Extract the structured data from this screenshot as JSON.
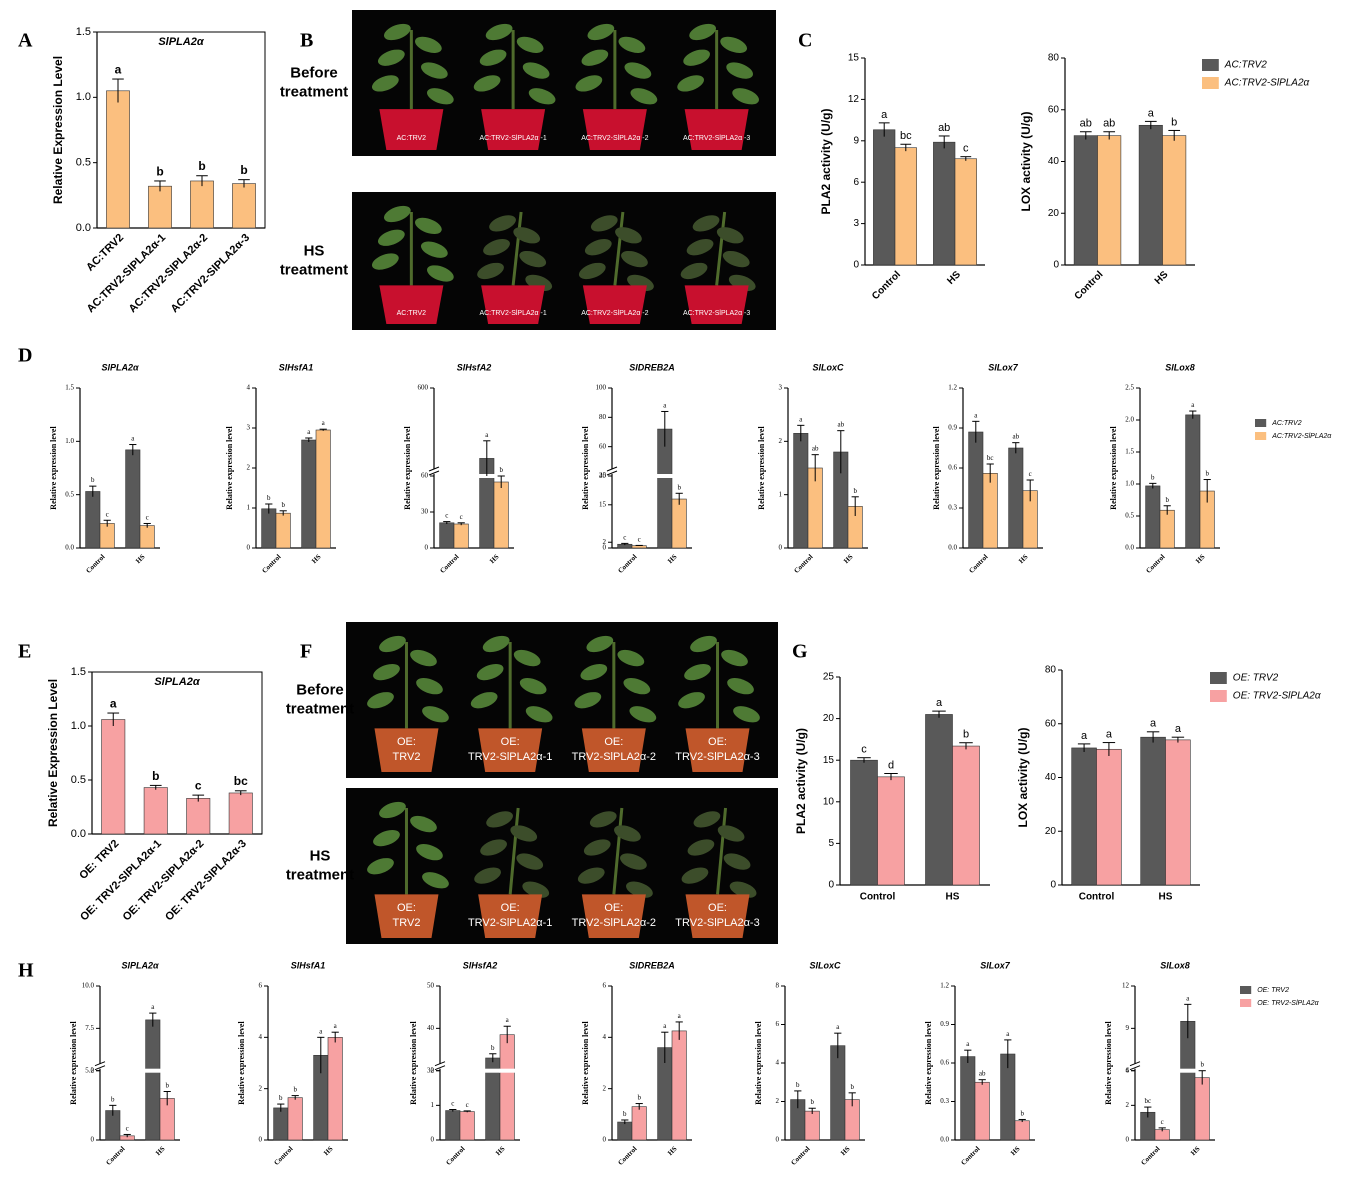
{
  "photos": [
    {
      "panel": "B",
      "images": [
        {
          "label": [
            "Before",
            "treatment"
          ],
          "pots": [
            [
              "AC:TRV2"
            ],
            [
              "AC:TRV2-SlPLA2α -1"
            ],
            [
              "AC:TRV2-SlPLA2α -2"
            ],
            [
              "AC:TRV2-SlPLA2α -3"
            ]
          ]
        },
        {
          "label": [
            "HS",
            "treatment"
          ],
          "pots": [
            [
              "AC:TRV2"
            ],
            [
              "AC:TRV2-SlPLA2α -1"
            ],
            [
              "AC:TRV2-SlPLA2α -2"
            ],
            [
              "AC:TRV2-SlPLA2α -3"
            ]
          ]
        }
      ]
    },
    {
      "panel": "F",
      "images": [
        {
          "label": [
            "Before",
            "treatment"
          ],
          "pots": [
            [
              "OE:",
              "TRV2"
            ],
            [
              "OE:",
              "TRV2-SlPLA2α-1"
            ],
            [
              "OE:",
              "TRV2-SlPLA2α-2"
            ],
            [
              "OE:",
              "TRV2-SlPLA2α-3"
            ]
          ]
        },
        {
          "label": [
            "HS",
            "treatment"
          ],
          "pots": [
            [
              "OE:",
              "TRV2"
            ],
            [
              "OE:",
              "TRV2-SlPLA2α-1"
            ],
            [
              "OE:",
              "TRV2-SlPLA2α-2"
            ],
            [
              "OE:",
              "TRV2-SlPLA2α-3"
            ]
          ]
        }
      ]
    }
  ],
  "chart_data": [
    {
      "type": "bar",
      "panel": "A",
      "title": "SlPLA2α",
      "y_label": "Relative Expression Level",
      "categories": [
        "AC:TRV2",
        "AC:TRV2-SlPLA2α-1",
        "AC:TRV2-SlPLA2α-2",
        "AC:TRV2-SlPLA2α-3"
      ],
      "values": [
        1.05,
        0.32,
        0.36,
        0.34
      ],
      "errors": [
        0.09,
        0.04,
        0.04,
        0.03
      ],
      "letters": [
        "a",
        "b",
        "b",
        "b"
      ],
      "color": "#fbbf7f",
      "ylim": [
        0,
        1.5
      ],
      "yticks": [
        {
          "value": 0,
          "label": "0.0"
        },
        0.5,
        {
          "value": 1,
          "label": "1.0"
        },
        1.5
      ]
    },
    {
      "type": "bar",
      "panel": "C",
      "y_label": "PLA2 activity (U/g)",
      "categories": [
        "Control",
        "HS"
      ],
      "series": [
        {
          "color": "#595959",
          "values": [
            9.8,
            8.9
          ],
          "errors": [
            0.5,
            0.45
          ],
          "letters": [
            "a",
            "ab"
          ]
        },
        {
          "color": "#fbbf7f",
          "values": [
            8.5,
            7.7
          ],
          "errors": [
            0.25,
            0.15
          ],
          "letters": [
            "bc",
            "c"
          ]
        }
      ],
      "ylim": [
        0,
        15
      ],
      "yticks": [
        0,
        3,
        6,
        9,
        12,
        15
      ]
    },
    {
      "type": "bar",
      "y_label": "LOX activity (U/g)",
      "categories": [
        "Control",
        "HS"
      ],
      "series": [
        {
          "name": "AC:TRV2",
          "color": "#595959",
          "values": [
            50,
            54
          ],
          "errors": [
            1.5,
            1.5
          ],
          "letters": [
            "ab",
            "a"
          ]
        },
        {
          "name": "AC:TRV2-SlPLA2α",
          "color": "#fbbf7f",
          "values": [
            50,
            50
          ],
          "errors": [
            1.5,
            2
          ],
          "letters": [
            "ab",
            "b"
          ]
        }
      ],
      "ylim": [
        0,
        80
      ],
      "yticks": [
        0,
        20,
        40,
        60,
        80
      ]
    },
    {
      "type": "bar",
      "panel": "D",
      "title": "SlPLA2α",
      "y_label": "Relative expression level",
      "categories": [
        "Control",
        "HS"
      ],
      "series": [
        {
          "color": "#595959",
          "values": [
            0.53,
            0.92
          ],
          "errors": [
            0.05,
            0.05
          ],
          "letters": [
            "b",
            "a"
          ]
        },
        {
          "color": "#fbbf7f",
          "values": [
            0.23,
            0.21
          ],
          "errors": [
            0.03,
            0.02
          ],
          "letters": [
            "c",
            "c"
          ]
        }
      ],
      "ylim": [
        0,
        1.5
      ],
      "yticks": [
        {
          "value": 0,
          "label": "0.0"
        },
        0.5,
        {
          "value": 1,
          "label": "1.0"
        },
        1.5
      ]
    },
    {
      "type": "bar",
      "title": "SlHsfA1",
      "y_label": "Relative expression level",
      "categories": [
        "Control",
        "HS"
      ],
      "series": [
        {
          "color": "#595959",
          "values": [
            0.98,
            2.7
          ],
          "errors": [
            0.12,
            0.05
          ],
          "letters": [
            "b",
            "a"
          ]
        },
        {
          "color": "#fbbf7f",
          "values": [
            0.87,
            2.95
          ],
          "errors": [
            0.06,
            0.02
          ],
          "letters": [
            "b",
            "a"
          ]
        }
      ],
      "ylim": [
        0,
        4
      ],
      "yticks": [
        0,
        1,
        2,
        3,
        4
      ]
    },
    {
      "type": "bar",
      "title": "SlHsfA2",
      "y_label": "Relative expression level",
      "categories": [
        "Control",
        "HS"
      ],
      "series": [
        {
          "color": "#595959",
          "values": [
            21,
            360
          ],
          "errors": [
            1,
            60
          ],
          "letters": [
            "c",
            "a"
          ]
        },
        {
          "color": "#fbbf7f",
          "values": [
            20,
            55
          ],
          "errors": [
            1,
            5
          ],
          "letters": [
            "c",
            "b"
          ]
        }
      ],
      "ylim": [
        0,
        600
      ],
      "ybreak": [
        60,
        300
      ],
      "yticks": [
        0,
        30,
        60,
        600
      ]
    },
    {
      "type": "bar",
      "title": "SlDREB2A",
      "y_label": "Relative expression level",
      "categories": [
        "Control",
        "HS"
      ],
      "series": [
        {
          "color": "#595959",
          "values": [
            1.3,
            72
          ],
          "errors": [
            0.3,
            12
          ],
          "letters": [
            "c",
            "a"
          ]
        },
        {
          "color": "#fbbf7f",
          "values": [
            0.8,
            17
          ],
          "errors": [
            0.1,
            2
          ],
          "letters": [
            "c",
            "b"
          ]
        }
      ],
      "ylim": [
        0,
        100
      ],
      "ybreak": [
        25,
        40
      ],
      "yticks": [
        0,
        2,
        15,
        25,
        40,
        60,
        80,
        100
      ]
    },
    {
      "type": "bar",
      "title": "SlLoxC",
      "y_label": "Relative expression level",
      "categories": [
        "Control",
        "HS"
      ],
      "series": [
        {
          "color": "#595959",
          "values": [
            2.15,
            1.8
          ],
          "errors": [
            0.15,
            0.4
          ],
          "letters": [
            "a",
            "ab"
          ]
        },
        {
          "color": "#fbbf7f",
          "values": [
            1.5,
            0.78
          ],
          "errors": [
            0.25,
            0.18
          ],
          "letters": [
            "ab",
            "b"
          ]
        }
      ],
      "ylim": [
        0,
        3
      ],
      "yticks": [
        0,
        1,
        2,
        3
      ]
    },
    {
      "type": "bar",
      "title": "SlLox7",
      "y_label": "Relative expression level",
      "categories": [
        "Control",
        "HS"
      ],
      "series": [
        {
          "color": "#595959",
          "values": [
            0.87,
            0.75
          ],
          "errors": [
            0.08,
            0.04
          ],
          "letters": [
            "a",
            "ab"
          ]
        },
        {
          "color": "#fbbf7f",
          "values": [
            0.56,
            0.43
          ],
          "errors": [
            0.07,
            0.08
          ],
          "letters": [
            "bc",
            "c"
          ]
        }
      ],
      "ylim": [
        0,
        1.2
      ],
      "yticks": [
        {
          "value": 0,
          "label": "0.0"
        },
        0.3,
        0.6,
        0.9,
        1.2
      ]
    },
    {
      "type": "bar",
      "title": "SlLox8",
      "y_label": "Relative expression level",
      "categories": [
        "Control",
        "HS"
      ],
      "series": [
        {
          "name": "AC:TRV2",
          "color": "#595959",
          "values": [
            0.97,
            2.08
          ],
          "errors": [
            0.04,
            0.06
          ],
          "letters": [
            "b",
            "a"
          ]
        },
        {
          "name": "AC:TRV2-SlPLA2α",
          "color": "#fbbf7f",
          "values": [
            0.59,
            0.89
          ],
          "errors": [
            0.07,
            0.18
          ],
          "letters": [
            "b",
            "b"
          ]
        }
      ],
      "ylim": [
        0,
        2.5
      ],
      "yticks": [
        {
          "value": 0,
          "label": "0.0"
        },
        0.5,
        {
          "value": 1,
          "label": "1.0"
        },
        1.5,
        {
          "value": 2,
          "label": "2.0"
        },
        2.5
      ]
    },
    {
      "type": "bar",
      "panel": "E",
      "title": "SlPLA2α",
      "y_label": "Relative Expression Level",
      "categories": [
        "OE: TRV2",
        "OE: TRV2-SlPLA2α-1",
        "OE: TRV2-SlPLA2α-2",
        "OE: TRV2-SlPLA2α-3"
      ],
      "values": [
        1.06,
        0.43,
        0.33,
        0.38
      ],
      "errors": [
        0.06,
        0.02,
        0.03,
        0.02
      ],
      "letters": [
        "a",
        "b",
        "c",
        "bc"
      ],
      "color": "#f7a1a2",
      "ylim": [
        0,
        1.5
      ],
      "yticks": [
        {
          "value": 0,
          "label": "0.0"
        },
        0.5,
        {
          "value": 1,
          "label": "1.0"
        },
        1.5
      ]
    },
    {
      "type": "bar",
      "panel": "G",
      "y_label": "PLA2 activity (U/g)",
      "categories": [
        "Control",
        "HS"
      ],
      "series": [
        {
          "color": "#595959",
          "values": [
            15,
            20.5
          ],
          "errors": [
            0.3,
            0.4
          ],
          "letters": [
            "c",
            "a"
          ]
        },
        {
          "color": "#f7a1a2",
          "values": [
            13,
            16.7
          ],
          "errors": [
            0.4,
            0.4
          ],
          "letters": [
            "d",
            "b"
          ]
        }
      ],
      "ylim": [
        0,
        25
      ],
      "yticks": [
        0,
        5,
        10,
        15,
        20,
        25
      ]
    },
    {
      "type": "bar",
      "y_label": "LOX activity (U/g)",
      "categories": [
        "Control",
        "HS"
      ],
      "series": [
        {
          "name": "OE: TRV2",
          "color": "#595959",
          "values": [
            51,
            55
          ],
          "errors": [
            1.5,
            2
          ],
          "letters": [
            "a",
            "a"
          ]
        },
        {
          "name": "OE: TRV2-SlPLA2α",
          "color": "#f7a1a2",
          "values": [
            50.5,
            54
          ],
          "errors": [
            2.5,
            1
          ],
          "letters": [
            "a",
            "a"
          ]
        }
      ],
      "ylim": [
        0,
        80
      ],
      "yticks": [
        0,
        20,
        40,
        60,
        80
      ]
    },
    {
      "type": "bar",
      "panel": "H",
      "title": "SlPLA2α",
      "y_label": "Relative expression level",
      "categories": [
        "Control",
        "HS"
      ],
      "series": [
        {
          "color": "#595959",
          "values": [
            0.85,
            8.0
          ],
          "errors": [
            0.15,
            0.4
          ],
          "letters": [
            "b",
            "a"
          ]
        },
        {
          "color": "#f7a1a2",
          "values": [
            0.12,
            1.2
          ],
          "errors": [
            0.04,
            0.2
          ],
          "letters": [
            "c",
            "b"
          ]
        }
      ],
      "ylim": [
        0,
        10
      ],
      "ybreak": [
        2,
        5
      ],
      "yticks": [
        0,
        2,
        {
          "value": 5,
          "label": "5.0"
        },
        7.5,
        {
          "value": 10,
          "label": "10.0"
        }
      ]
    },
    {
      "type": "bar",
      "title": "SlHsfA1",
      "y_label": "Relative expression level",
      "categories": [
        "Control",
        "HS"
      ],
      "series": [
        {
          "color": "#595959",
          "values": [
            1.25,
            3.3
          ],
          "errors": [
            0.15,
            0.7
          ],
          "letters": [
            "b",
            "a"
          ]
        },
        {
          "color": "#f7a1a2",
          "values": [
            1.65,
            4.0
          ],
          "errors": [
            0.08,
            0.2
          ],
          "letters": [
            "b",
            "a"
          ]
        }
      ],
      "ylim": [
        0,
        6
      ],
      "yticks": [
        0,
        2,
        4,
        6
      ]
    },
    {
      "type": "bar",
      "title": "SlHsfA2",
      "y_label": "Relative expression level",
      "categories": [
        "Control",
        "HS"
      ],
      "series": [
        {
          "color": "#595959",
          "values": [
            0.85,
            33
          ],
          "errors": [
            0.03,
            1
          ],
          "letters": [
            "c",
            "b"
          ]
        },
        {
          "color": "#f7a1a2",
          "values": [
            0.82,
            38.5
          ],
          "errors": [
            0.02,
            2
          ],
          "letters": [
            "c",
            "a"
          ]
        }
      ],
      "ylim": [
        0,
        50
      ],
      "ybreak": [
        2,
        30
      ],
      "yticks": [
        0,
        1,
        2,
        30,
        40,
        50
      ]
    },
    {
      "type": "bar",
      "title": "SlDREB2A",
      "y_label": "Relative expression level",
      "categories": [
        "Control",
        "HS"
      ],
      "series": [
        {
          "color": "#595959",
          "values": [
            0.7,
            3.6
          ],
          "errors": [
            0.08,
            0.6
          ],
          "letters": [
            "b",
            "a"
          ]
        },
        {
          "color": "#f7a1a2",
          "values": [
            1.3,
            4.25
          ],
          "errors": [
            0.12,
            0.35
          ],
          "letters": [
            "b",
            "a"
          ]
        }
      ],
      "ylim": [
        0,
        6
      ],
      "yticks": [
        0,
        2,
        4,
        6
      ]
    },
    {
      "type": "bar",
      "title": "SlLoxC",
      "y_label": "Relative expression level",
      "categories": [
        "Control",
        "HS"
      ],
      "series": [
        {
          "color": "#595959",
          "values": [
            2.1,
            4.9
          ],
          "errors": [
            0.45,
            0.65
          ],
          "letters": [
            "b",
            "a"
          ]
        },
        {
          "color": "#f7a1a2",
          "values": [
            1.5,
            2.1
          ],
          "errors": [
            0.15,
            0.35
          ],
          "letters": [
            "b",
            "b"
          ]
        }
      ],
      "ylim": [
        0,
        8
      ],
      "yticks": [
        0,
        2,
        4,
        6,
        8
      ]
    },
    {
      "type": "bar",
      "title": "SlLox7",
      "y_label": "Relative expression level",
      "categories": [
        "Control",
        "HS"
      ],
      "series": [
        {
          "color": "#595959",
          "values": [
            0.65,
            0.67
          ],
          "errors": [
            0.05,
            0.11
          ],
          "letters": [
            "a",
            "a"
          ]
        },
        {
          "color": "#f7a1a2",
          "values": [
            0.45,
            0.15
          ],
          "errors": [
            0.02,
            0.01
          ],
          "letters": [
            "ab",
            "b"
          ]
        }
      ],
      "ylim": [
        0,
        1.2
      ],
      "yticks": [
        {
          "value": 0,
          "label": "0.0"
        },
        0.3,
        0.6,
        0.9,
        1.2
      ]
    },
    {
      "type": "bar",
      "title": "SlLox8",
      "y_label": "Relative expression level",
      "categories": [
        "Control",
        "HS"
      ],
      "series": [
        {
          "name": "OE: TRV2",
          "color": "#595959",
          "values": [
            1.6,
            9.5
          ],
          "errors": [
            0.3,
            1.2
          ],
          "letters": [
            "bc",
            "a"
          ]
        },
        {
          "name": "OE: TRV2-SlPLA2α",
          "color": "#f7a1a2",
          "values": [
            0.6,
            3.6
          ],
          "errors": [
            0.1,
            0.4
          ],
          "letters": [
            "c",
            "b"
          ]
        }
      ],
      "ylim": [
        0,
        12
      ],
      "ybreak": [
        4,
        6
      ],
      "yticks": [
        0,
        2,
        4,
        6,
        9,
        12
      ]
    }
  ]
}
